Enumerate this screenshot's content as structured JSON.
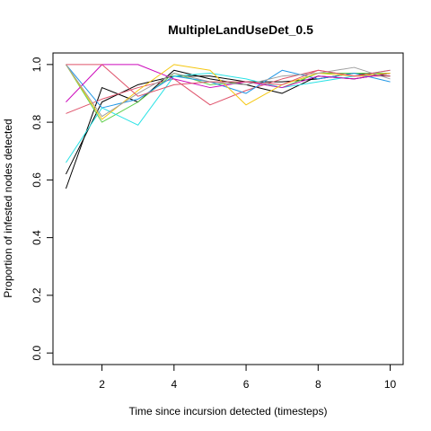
{
  "chart_data": {
    "type": "line",
    "title": "MultipleLandUseDet_0.5",
    "xlabel": "Time since incursion detected (timesteps)",
    "ylabel": "Proportion of infested nodes detected",
    "xlim": [
      0.64,
      10.36
    ],
    "ylim": [
      -0.04,
      1.04
    ],
    "x_ticks": [
      2,
      4,
      6,
      8,
      10
    ],
    "y_ticks": [
      0.0,
      0.2,
      0.4,
      0.6,
      0.8,
      1.0
    ],
    "x": [
      1,
      2,
      3,
      4,
      5,
      6,
      7,
      8,
      9,
      10
    ],
    "grid": false,
    "legend": "none",
    "series": [
      {
        "color": "#000000",
        "values": [
          0.57,
          0.92,
          0.87,
          0.98,
          0.95,
          0.93,
          0.9,
          0.96,
          0.95,
          0.97
        ]
      },
      {
        "color": "#000000",
        "values": [
          0.62,
          0.87,
          0.93,
          0.96,
          0.96,
          0.94,
          0.94,
          0.95,
          0.97,
          0.96
        ]
      },
      {
        "color": "#DF536B",
        "values": [
          0.83,
          0.88,
          0.92,
          0.95,
          0.86,
          0.91,
          0.95,
          0.98,
          0.96,
          0.96
        ]
      },
      {
        "color": "#61D04F",
        "values": [
          1.0,
          0.8,
          0.87,
          0.97,
          0.93,
          0.94,
          0.92,
          0.97,
          0.97,
          0.97
        ]
      },
      {
        "color": "#2297E6",
        "values": [
          1.0,
          0.85,
          0.88,
          0.96,
          0.94,
          0.9,
          0.98,
          0.95,
          0.97,
          0.94
        ]
      },
      {
        "color": "#28E2E5",
        "values": [
          0.66,
          0.85,
          0.79,
          0.96,
          0.97,
          0.95,
          0.92,
          0.94,
          0.96,
          0.98
        ]
      },
      {
        "color": "#CD0BBC",
        "values": [
          0.87,
          1.0,
          1.0,
          0.95,
          0.92,
          0.94,
          0.92,
          0.96,
          0.95,
          0.97
        ]
      },
      {
        "color": "#F5C710",
        "values": [
          1.0,
          0.81,
          0.91,
          1.0,
          0.98,
          0.86,
          0.93,
          0.97,
          0.96,
          0.97
        ]
      },
      {
        "color": "#9E9E9E",
        "values": [
          1.0,
          0.82,
          0.9,
          0.97,
          0.94,
          0.93,
          0.96,
          0.97,
          0.99,
          0.95
        ]
      },
      {
        "color": "#DF536B",
        "values": [
          1.0,
          1.0,
          0.89,
          0.93,
          0.94,
          0.94,
          0.93,
          0.98,
          0.96,
          0.98
        ]
      }
    ]
  }
}
